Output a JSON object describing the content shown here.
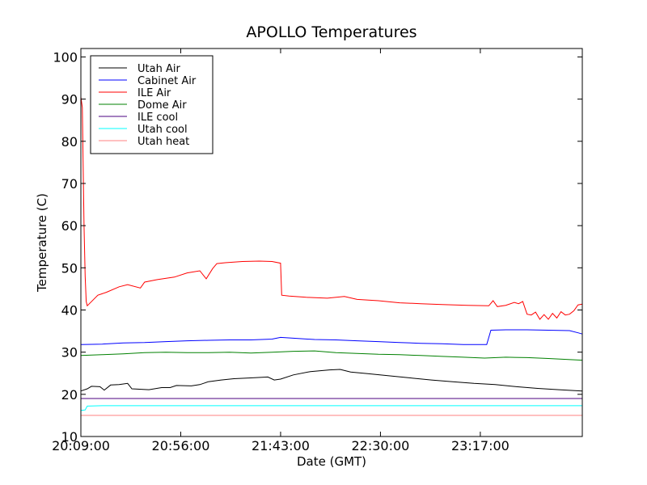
{
  "chart_data": {
    "type": "line",
    "title": "APOLLO Temperatures",
    "xlabel": "Date (GMT)",
    "ylabel": "Temperature (C)",
    "xlim": [
      0,
      236
    ],
    "ylim": [
      10,
      102
    ],
    "x_ticks": [
      {
        "x": 0,
        "label": "20:09:00"
      },
      {
        "x": 47,
        "label": "20:56:00"
      },
      {
        "x": 94,
        "label": "21:43:00"
      },
      {
        "x": 141,
        "label": "22:30:00"
      },
      {
        "x": 188,
        "label": "23:17:00"
      }
    ],
    "y_ticks": [
      10,
      20,
      30,
      40,
      50,
      60,
      70,
      80,
      90,
      100
    ],
    "legend_position": "top-left",
    "series": [
      {
        "name": "Utah Air",
        "color": "#000000",
        "points": [
          [
            0,
            20.8
          ],
          [
            3,
            21.3
          ],
          [
            5,
            21.9
          ],
          [
            9,
            21.8
          ],
          [
            11,
            21.0
          ],
          [
            14,
            22.2
          ],
          [
            18,
            22.3
          ],
          [
            22,
            22.6
          ],
          [
            24,
            21.3
          ],
          [
            32,
            21.1
          ],
          [
            38,
            21.6
          ],
          [
            42,
            21.6
          ],
          [
            45,
            22.1
          ],
          [
            52,
            22.0
          ],
          [
            56,
            22.3
          ],
          [
            60,
            23.0
          ],
          [
            66,
            23.4
          ],
          [
            72,
            23.7
          ],
          [
            80,
            23.9
          ],
          [
            88,
            24.1
          ],
          [
            91,
            23.4
          ],
          [
            94,
            23.6
          ],
          [
            100,
            24.6
          ],
          [
            108,
            25.4
          ],
          [
            117,
            25.8
          ],
          [
            122,
            25.9
          ],
          [
            127,
            25.3
          ],
          [
            135,
            24.9
          ],
          [
            145,
            24.4
          ],
          [
            155,
            23.9
          ],
          [
            165,
            23.4
          ],
          [
            175,
            23.0
          ],
          [
            185,
            22.6
          ],
          [
            195,
            22.3
          ],
          [
            205,
            21.8
          ],
          [
            215,
            21.4
          ],
          [
            225,
            21.1
          ],
          [
            236,
            20.8
          ]
        ]
      },
      {
        "name": "Cabinet Air",
        "color": "#0000ff",
        "points": [
          [
            0,
            31.8
          ],
          [
            10,
            31.9
          ],
          [
            20,
            32.2
          ],
          [
            30,
            32.3
          ],
          [
            40,
            32.5
          ],
          [
            50,
            32.7
          ],
          [
            60,
            32.8
          ],
          [
            70,
            32.9
          ],
          [
            80,
            32.9
          ],
          [
            90,
            33.1
          ],
          [
            94,
            33.5
          ],
          [
            100,
            33.3
          ],
          [
            110,
            33.0
          ],
          [
            120,
            32.9
          ],
          [
            130,
            32.7
          ],
          [
            140,
            32.5
          ],
          [
            150,
            32.3
          ],
          [
            160,
            32.1
          ],
          [
            170,
            32.0
          ],
          [
            180,
            31.8
          ],
          [
            191,
            31.8
          ],
          [
            193,
            35.2
          ],
          [
            200,
            35.3
          ],
          [
            210,
            35.3
          ],
          [
            220,
            35.2
          ],
          [
            230,
            35.1
          ],
          [
            234,
            34.6
          ],
          [
            236,
            34.3
          ]
        ]
      },
      {
        "name": "ILE Air",
        "color": "#ff0000",
        "points": [
          [
            0,
            90.5
          ],
          [
            0.7,
            88.0
          ],
          [
            1.5,
            60.0
          ],
          [
            2,
            48.0
          ],
          [
            2.5,
            42.0
          ],
          [
            3,
            41.0
          ],
          [
            8,
            43.5
          ],
          [
            12,
            44.2
          ],
          [
            18,
            45.5
          ],
          [
            22,
            46.0
          ],
          [
            28,
            45.2
          ],
          [
            30,
            46.6
          ],
          [
            36,
            47.2
          ],
          [
            44,
            47.8
          ],
          [
            50,
            48.8
          ],
          [
            56,
            49.3
          ],
          [
            59,
            47.4
          ],
          [
            62,
            49.8
          ],
          [
            64,
            51.0
          ],
          [
            68,
            51.2
          ],
          [
            76,
            51.5
          ],
          [
            84,
            51.6
          ],
          [
            90,
            51.5
          ],
          [
            94,
            51.1
          ],
          [
            94.5,
            43.5
          ],
          [
            98,
            43.3
          ],
          [
            106,
            43.0
          ],
          [
            116,
            42.8
          ],
          [
            124,
            43.2
          ],
          [
            130,
            42.5
          ],
          [
            140,
            42.2
          ],
          [
            150,
            41.7
          ],
          [
            160,
            41.5
          ],
          [
            170,
            41.3
          ],
          [
            182,
            41.1
          ],
          [
            192,
            41.0
          ],
          [
            194,
            42.2
          ],
          [
            196,
            40.8
          ],
          [
            200,
            41.1
          ],
          [
            204,
            41.8
          ],
          [
            206,
            41.5
          ],
          [
            208,
            42.0
          ],
          [
            210,
            39.0
          ],
          [
            212,
            38.8
          ],
          [
            214,
            39.5
          ],
          [
            216,
            37.8
          ],
          [
            218,
            38.9
          ],
          [
            220,
            37.8
          ],
          [
            222,
            39.2
          ],
          [
            224,
            38.1
          ],
          [
            226,
            39.6
          ],
          [
            228,
            38.8
          ],
          [
            230,
            39.0
          ],
          [
            232,
            39.8
          ],
          [
            234,
            41.2
          ],
          [
            236,
            41.4
          ]
        ]
      },
      {
        "name": "Dome Air",
        "color": "#008000",
        "points": [
          [
            0,
            29.2
          ],
          [
            10,
            29.4
          ],
          [
            20,
            29.6
          ],
          [
            30,
            29.9
          ],
          [
            40,
            30.0
          ],
          [
            50,
            29.9
          ],
          [
            60,
            29.9
          ],
          [
            70,
            30.0
          ],
          [
            80,
            29.8
          ],
          [
            90,
            30.0
          ],
          [
            100,
            30.2
          ],
          [
            110,
            30.3
          ],
          [
            120,
            29.9
          ],
          [
            130,
            29.7
          ],
          [
            140,
            29.5
          ],
          [
            150,
            29.4
          ],
          [
            160,
            29.2
          ],
          [
            170,
            29.0
          ],
          [
            180,
            28.8
          ],
          [
            190,
            28.6
          ],
          [
            200,
            28.8
          ],
          [
            210,
            28.7
          ],
          [
            220,
            28.5
          ],
          [
            236,
            28.1
          ]
        ]
      },
      {
        "name": "ILE cool",
        "color": "#4b0082",
        "points": [
          [
            0,
            19.0
          ],
          [
            236,
            19.0
          ]
        ]
      },
      {
        "name": "Utah cool",
        "color": "#00ffff",
        "points": [
          [
            0,
            16.2
          ],
          [
            2,
            16.3
          ],
          [
            3,
            17.2
          ],
          [
            10,
            17.3
          ],
          [
            100,
            17.3
          ],
          [
            236,
            17.3
          ]
        ]
      },
      {
        "name": "Utah heat",
        "color": "#ff8080",
        "points": [
          [
            0,
            15.0
          ],
          [
            236,
            15.0
          ]
        ]
      }
    ]
  }
}
